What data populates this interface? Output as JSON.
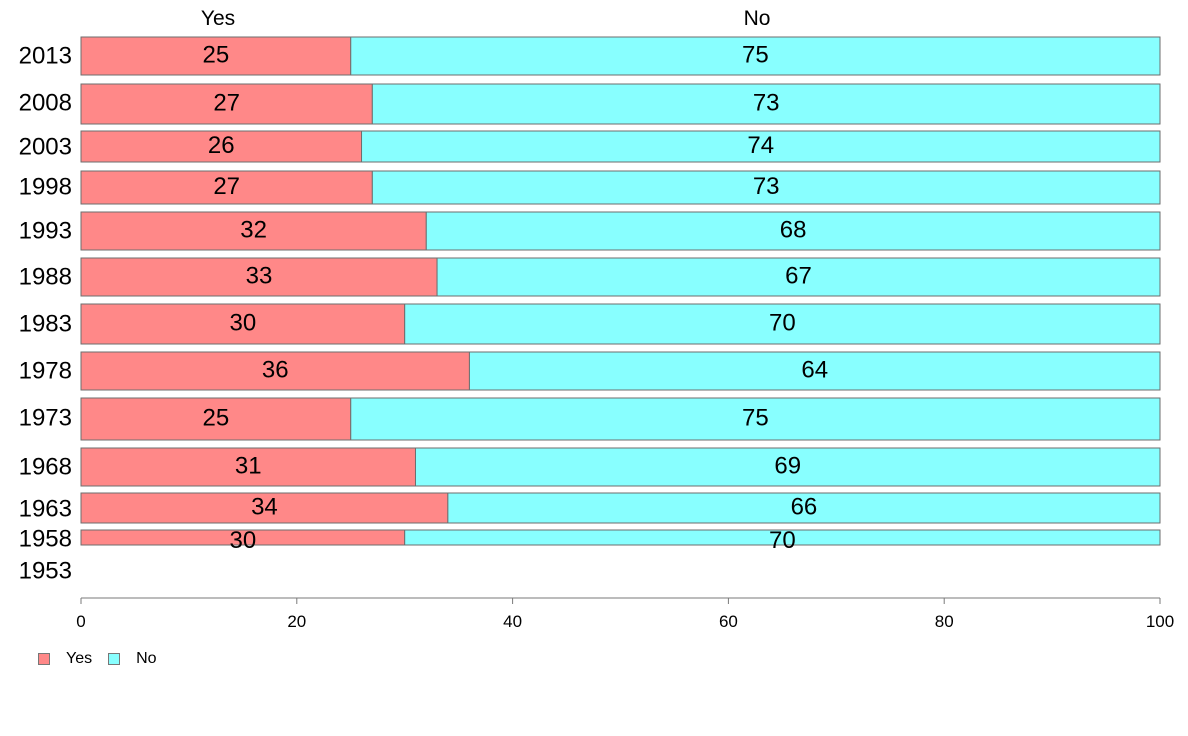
{
  "chart_data": {
    "type": "bar",
    "orientation": "horizontal",
    "stacked": true,
    "categories": [
      "2013",
      "2008",
      "2003",
      "1998",
      "1993",
      "1988",
      "1983",
      "1978",
      "1973",
      "1968",
      "1963",
      "1958",
      "1953"
    ],
    "series": [
      {
        "name": "Yes",
        "color": "#ff8888",
        "values": [
          25,
          27,
          26,
          27,
          32,
          33,
          30,
          36,
          25,
          31,
          34,
          30,
          null
        ]
      },
      {
        "name": "No",
        "color": "#88ffff",
        "values": [
          75,
          73,
          74,
          73,
          68,
          67,
          70,
          64,
          75,
          69,
          66,
          70,
          null
        ]
      }
    ],
    "data_labels": {
      "Yes": [
        "25",
        "27",
        "26",
        "27",
        "32",
        "33",
        "30",
        "36",
        "25",
        "31",
        "34",
        "30",
        ""
      ],
      "No": [
        "75",
        "73",
        "74",
        "73",
        "68",
        "67",
        "70",
        "64",
        "75",
        "69",
        "66",
        "70",
        ""
      ]
    },
    "top_labels": [
      "Yes",
      "No"
    ],
    "xlim": [
      0,
      100
    ],
    "xticks": [
      "0",
      "20",
      "40",
      "60",
      "80",
      "100"
    ],
    "grid": false,
    "legend_position": "bottom-left"
  },
  "legend": [
    {
      "label": "Yes",
      "color": "#ff8888"
    },
    {
      "label": "No",
      "color": "#88ffff"
    }
  ]
}
